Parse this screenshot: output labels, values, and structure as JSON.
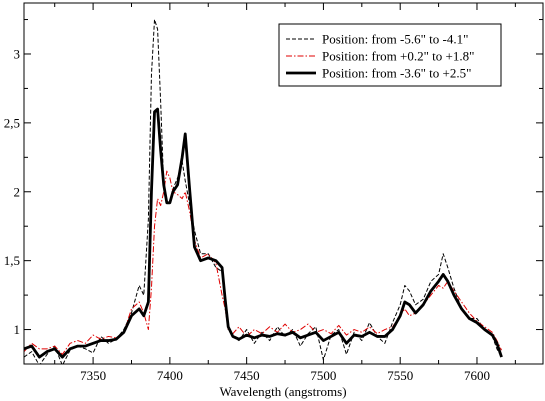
{
  "chart_data": {
    "type": "line",
    "title": "",
    "xlabel": "Wavelength (angstroms)",
    "ylabel": "",
    "xlim": [
      7305,
      7643
    ],
    "ylim": [
      0.75,
      3.37
    ],
    "xticks": [
      7350,
      7400,
      7450,
      7500,
      7550,
      7600
    ],
    "xtick_labels": [
      "7350",
      "7400",
      "7450",
      "7500",
      "7550",
      "7600"
    ],
    "yticks": [
      1,
      1.5,
      2,
      2.5,
      3
    ],
    "ytick_labels": [
      "1",
      "1,5",
      "2",
      "2,5",
      "3"
    ],
    "legend_position": "top-right",
    "series": [
      {
        "name": "Position: from -5.6\" to -4.1\"",
        "color": "#000000",
        "style": "dashed",
        "points": [
          [
            7305,
            0.8
          ],
          [
            7310,
            0.84
          ],
          [
            7315,
            0.74
          ],
          [
            7320,
            0.82
          ],
          [
            7325,
            0.88
          ],
          [
            7330,
            0.74
          ],
          [
            7335,
            0.85
          ],
          [
            7340,
            0.88
          ],
          [
            7345,
            0.86
          ],
          [
            7350,
            0.83
          ],
          [
            7355,
            0.95
          ],
          [
            7360,
            0.9
          ],
          [
            7365,
            0.93
          ],
          [
            7370,
            1.0
          ],
          [
            7375,
            1.12
          ],
          [
            7380,
            1.32
          ],
          [
            7383,
            1.25
          ],
          [
            7386,
            1.8
          ],
          [
            7388,
            2.85
          ],
          [
            7390,
            3.25
          ],
          [
            7392,
            3.18
          ],
          [
            7394,
            2.65
          ],
          [
            7396,
            2.05
          ],
          [
            7398,
            1.92
          ],
          [
            7400,
            1.92
          ],
          [
            7402,
            2.02
          ],
          [
            7405,
            2.1
          ],
          [
            7408,
            2.22
          ],
          [
            7410,
            2.08
          ],
          [
            7413,
            1.9
          ],
          [
            7416,
            1.72
          ],
          [
            7420,
            1.55
          ],
          [
            7425,
            1.55
          ],
          [
            7430,
            1.45
          ],
          [
            7434,
            1.42
          ],
          [
            7436,
            1.2
          ],
          [
            7438,
            1.0
          ],
          [
            7441,
            0.95
          ],
          [
            7445,
            0.92
          ],
          [
            7450,
            1.0
          ],
          [
            7455,
            0.9
          ],
          [
            7460,
            0.98
          ],
          [
            7465,
            0.92
          ],
          [
            7470,
            1.02
          ],
          [
            7475,
            0.95
          ],
          [
            7480,
            1.0
          ],
          [
            7485,
            0.88
          ],
          [
            7490,
            0.97
          ],
          [
            7495,
            1.02
          ],
          [
            7500,
            0.78
          ],
          [
            7505,
            0.96
          ],
          [
            7510,
            1.0
          ],
          [
            7515,
            0.82
          ],
          [
            7520,
            0.98
          ],
          [
            7525,
            0.92
          ],
          [
            7530,
            1.05
          ],
          [
            7535,
            0.95
          ],
          [
            7540,
            0.9
          ],
          [
            7545,
            1.05
          ],
          [
            7550,
            1.18
          ],
          [
            7553,
            1.32
          ],
          [
            7556,
            1.28
          ],
          [
            7560,
            1.18
          ],
          [
            7565,
            1.22
          ],
          [
            7570,
            1.35
          ],
          [
            7575,
            1.4
          ],
          [
            7578,
            1.55
          ],
          [
            7581,
            1.45
          ],
          [
            7585,
            1.3
          ],
          [
            7590,
            1.15
          ],
          [
            7595,
            1.08
          ],
          [
            7600,
            1.08
          ],
          [
            7605,
            1.0
          ],
          [
            7610,
            0.95
          ],
          [
            7613,
            0.86
          ],
          [
            7616,
            0.8
          ]
        ]
      },
      {
        "name": "Position: from +0.2\" to +1.8\"",
        "color": "#e00000",
        "style": "dash-dot",
        "points": [
          [
            7305,
            0.84
          ],
          [
            7310,
            0.9
          ],
          [
            7315,
            0.86
          ],
          [
            7320,
            0.86
          ],
          [
            7325,
            0.88
          ],
          [
            7330,
            0.82
          ],
          [
            7335,
            0.9
          ],
          [
            7340,
            0.92
          ],
          [
            7345,
            0.9
          ],
          [
            7350,
            0.96
          ],
          [
            7355,
            0.93
          ],
          [
            7360,
            0.95
          ],
          [
            7365,
            0.94
          ],
          [
            7370,
            0.98
          ],
          [
            7375,
            1.15
          ],
          [
            7380,
            1.2
          ],
          [
            7383,
            1.12
          ],
          [
            7386,
            1.0
          ],
          [
            7388,
            1.3
          ],
          [
            7390,
            1.75
          ],
          [
            7392,
            1.95
          ],
          [
            7394,
            1.9
          ],
          [
            7396,
            2.0
          ],
          [
            7398,
            2.15
          ],
          [
            7400,
            2.1
          ],
          [
            7402,
            2.0
          ],
          [
            7405,
            1.98
          ],
          [
            7408,
            1.95
          ],
          [
            7410,
            2.0
          ],
          [
            7413,
            1.85
          ],
          [
            7416,
            1.65
          ],
          [
            7420,
            1.52
          ],
          [
            7425,
            1.55
          ],
          [
            7430,
            1.48
          ],
          [
            7434,
            1.25
          ],
          [
            7436,
            1.15
          ],
          [
            7438,
            1.0
          ],
          [
            7441,
            0.97
          ],
          [
            7445,
            1.02
          ],
          [
            7450,
            0.95
          ],
          [
            7455,
            1.0
          ],
          [
            7460,
            0.97
          ],
          [
            7465,
            1.02
          ],
          [
            7470,
            0.98
          ],
          [
            7475,
            1.04
          ],
          [
            7480,
            0.98
          ],
          [
            7485,
            1.0
          ],
          [
            7490,
            1.04
          ],
          [
            7495,
            0.98
          ],
          [
            7500,
            1.0
          ],
          [
            7505,
            0.97
          ],
          [
            7510,
            1.03
          ],
          [
            7515,
            0.96
          ],
          [
            7520,
            1.0
          ],
          [
            7525,
            0.98
          ],
          [
            7530,
            1.02
          ],
          [
            7535,
            0.97
          ],
          [
            7540,
            1.0
          ],
          [
            7545,
            1.02
          ],
          [
            7550,
            1.1
          ],
          [
            7553,
            1.15
          ],
          [
            7556,
            1.1
          ],
          [
            7560,
            1.12
          ],
          [
            7565,
            1.18
          ],
          [
            7570,
            1.25
          ],
          [
            7575,
            1.32
          ],
          [
            7578,
            1.3
          ],
          [
            7581,
            1.35
          ],
          [
            7585,
            1.28
          ],
          [
            7590,
            1.2
          ],
          [
            7595,
            1.12
          ],
          [
            7600,
            1.06
          ],
          [
            7605,
            1.02
          ],
          [
            7610,
            0.98
          ],
          [
            7613,
            0.92
          ],
          [
            7616,
            0.85
          ]
        ]
      },
      {
        "name": "Position: from -3.6\" to +2.5\"",
        "color": "#000000",
        "style": "solid-thick",
        "points": [
          [
            7305,
            0.86
          ],
          [
            7310,
            0.88
          ],
          [
            7315,
            0.8
          ],
          [
            7320,
            0.84
          ],
          [
            7325,
            0.86
          ],
          [
            7330,
            0.8
          ],
          [
            7335,
            0.86
          ],
          [
            7340,
            0.88
          ],
          [
            7345,
            0.88
          ],
          [
            7350,
            0.9
          ],
          [
            7355,
            0.92
          ],
          [
            7360,
            0.92
          ],
          [
            7365,
            0.93
          ],
          [
            7370,
            0.98
          ],
          [
            7375,
            1.1
          ],
          [
            7380,
            1.15
          ],
          [
            7383,
            1.1
          ],
          [
            7386,
            1.2
          ],
          [
            7388,
            2.0
          ],
          [
            7390,
            2.58
          ],
          [
            7392,
            2.6
          ],
          [
            7394,
            2.3
          ],
          [
            7396,
            2.05
          ],
          [
            7398,
            1.92
          ],
          [
            7400,
            1.92
          ],
          [
            7402,
            2.0
          ],
          [
            7405,
            2.05
          ],
          [
            7408,
            2.25
          ],
          [
            7410,
            2.42
          ],
          [
            7413,
            2.0
          ],
          [
            7416,
            1.6
          ],
          [
            7420,
            1.5
          ],
          [
            7425,
            1.52
          ],
          [
            7430,
            1.5
          ],
          [
            7434,
            1.45
          ],
          [
            7436,
            1.22
          ],
          [
            7438,
            1.02
          ],
          [
            7441,
            0.95
          ],
          [
            7445,
            0.93
          ],
          [
            7450,
            0.96
          ],
          [
            7455,
            0.94
          ],
          [
            7460,
            0.96
          ],
          [
            7465,
            0.95
          ],
          [
            7470,
            0.97
          ],
          [
            7475,
            0.96
          ],
          [
            7480,
            0.98
          ],
          [
            7485,
            0.94
          ],
          [
            7490,
            0.96
          ],
          [
            7495,
            0.98
          ],
          [
            7500,
            0.92
          ],
          [
            7505,
            0.95
          ],
          [
            7510,
            0.98
          ],
          [
            7515,
            0.9
          ],
          [
            7520,
            0.96
          ],
          [
            7525,
            0.95
          ],
          [
            7530,
            0.98
          ],
          [
            7535,
            0.95
          ],
          [
            7540,
            0.95
          ],
          [
            7545,
            1.0
          ],
          [
            7550,
            1.1
          ],
          [
            7553,
            1.2
          ],
          [
            7556,
            1.18
          ],
          [
            7560,
            1.12
          ],
          [
            7565,
            1.18
          ],
          [
            7570,
            1.28
          ],
          [
            7575,
            1.35
          ],
          [
            7578,
            1.4
          ],
          [
            7581,
            1.35
          ],
          [
            7585,
            1.25
          ],
          [
            7590,
            1.15
          ],
          [
            7595,
            1.08
          ],
          [
            7600,
            1.05
          ],
          [
            7605,
            1.0
          ],
          [
            7610,
            0.96
          ],
          [
            7613,
            0.9
          ],
          [
            7616,
            0.8
          ]
        ]
      }
    ]
  }
}
